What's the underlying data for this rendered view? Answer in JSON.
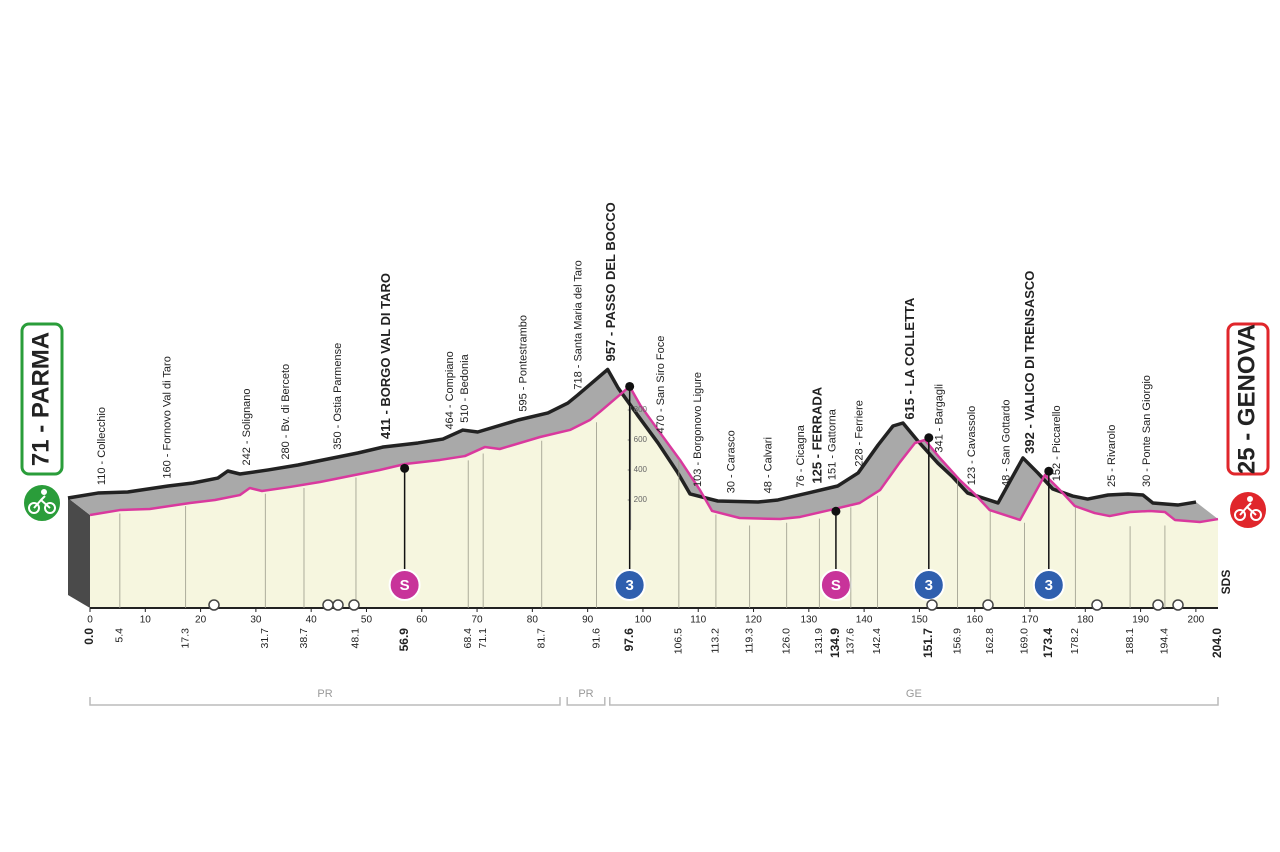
{
  "chart_data": {
    "type": "profile",
    "start": "71 - PARMA",
    "finish": "25 - GENOVA",
    "logo": "SDS",
    "xlim": [
      0,
      204
    ],
    "xticks": [
      0,
      10,
      20,
      30,
      40,
      50,
      60,
      70,
      80,
      90,
      100,
      110,
      120,
      130,
      140,
      150,
      160,
      170,
      180,
      190,
      200
    ],
    "ylim": [
      0,
      1000
    ],
    "yticks": [
      200,
      400,
      600,
      800
    ],
    "front_color": "#d9399e",
    "back_color": "#222222",
    "band_color": "#a9a9a9",
    "fill_color": "#f6f6df",
    "x": [
      0,
      5.4,
      10.8,
      18.1,
      22.6,
      27.1,
      28.9,
      31.1,
      36.2,
      41.6,
      47.0,
      52.4,
      57.0,
      63.3,
      67.8,
      71.4,
      74.1,
      81.4,
      86.8,
      90.4,
      92.2,
      97.6,
      99.5,
      103.0,
      106.7,
      110.3,
      112.5,
      117.5,
      124.8,
      128.4,
      133.8,
      139.2,
      142.9,
      146.5,
      149.2,
      151.0,
      153.7,
      157.3,
      160.0,
      162.7,
      168.2,
      172.7,
      175.4,
      178.1,
      181.7,
      184.4,
      188.1,
      191.7,
      194.4,
      196.2,
      200.7,
      204.0
    ],
    "values": [
      100,
      133,
      140,
      180,
      200,
      233,
      280,
      260,
      287,
      320,
      360,
      400,
      440,
      467,
      493,
      553,
      540,
      620,
      667,
      733,
      787,
      957,
      833,
      653,
      467,
      267,
      127,
      80,
      73,
      87,
      133,
      180,
      267,
      453,
      580,
      600,
      480,
      333,
      240,
      133,
      67,
      367,
      267,
      160,
      113,
      93,
      120,
      127,
      120,
      67,
      53,
      73
    ],
    "waypoints": [
      {
        "km": {
          "value": 0,
          "label": "0.0"
        },
        "bold": true
      },
      {
        "km": 5.4,
        "altitude": 110,
        "name": "110 - Collecchio"
      },
      {
        "km": 17.3,
        "altitude": 160,
        "name": "160 - Fornovo Val di Taro"
      },
      {
        "km": 31.7,
        "altitude": 242,
        "name": "242 - Solignano"
      },
      {
        "km": 38.7,
        "altitude": 280,
        "name": "280 - Bv. di Berceto"
      },
      {
        "km": 48.1,
        "altitude": 350,
        "name": "350 - Ostia Parmense"
      },
      {
        "km": 56.9,
        "altitude": 411,
        "name": "411 - BORGO VAL DI TARO",
        "bold": true,
        "badge": "S",
        "badge_color": "#c8339a"
      },
      {
        "km": 68.4,
        "altitude": 464,
        "name": "464 - Compiano"
      },
      {
        "km": 71.1,
        "altitude": 510,
        "name": "510 - Bedonia"
      },
      {
        "km": 81.7,
        "altitude": 595,
        "name": "595 - Pontestrambo"
      },
      {
        "km": 91.6,
        "altitude": 718,
        "name": "718 - Santa Maria del Taro"
      },
      {
        "km": 97.6,
        "altitude": 957,
        "name": "957 - PASSO DEL BOCCO",
        "bold": true,
        "badge": "3",
        "badge_color": "#2f5fae"
      },
      {
        "km": 106.5,
        "altitude": 470,
        "name": "470 - San Siro Foce"
      },
      {
        "km": 113.2,
        "altitude": 103,
        "name": "103 - Borgonovo Ligure"
      },
      {
        "km": 119.3,
        "altitude": 30,
        "name": "30 - Carasco"
      },
      {
        "km": {
          "value": 126,
          "label": "126.0"
        },
        "altitude": 48,
        "name": "48 - Calvari"
      },
      {
        "km": 131.9,
        "altitude": 76,
        "name": "76 - Cicagna"
      },
      {
        "km": 134.9,
        "altitude": 125,
        "name": "125 - FERRADA",
        "bold": true,
        "badge": "S",
        "badge_color": "#c8339a"
      },
      {
        "km": 137.6,
        "altitude": 151,
        "name": "151 - Gattorna"
      },
      {
        "km": 142.4,
        "altitude": 228,
        "name": "228 - Ferriere"
      },
      {
        "km": 151.7,
        "altitude": 615,
        "name": "615 - LA COLLETTA",
        "bold": true,
        "badge": "3",
        "badge_color": "#2f5fae"
      },
      {
        "km": 156.9,
        "altitude": 341,
        "name": "341 - Bargagli"
      },
      {
        "km": 162.8,
        "altitude": 123,
        "name": "123 - Cavassolo"
      },
      {
        "km": {
          "value": 169,
          "label": "169.0"
        },
        "altitude": 48,
        "name": "48 - San Gottardo"
      },
      {
        "km": 173.4,
        "altitude": 392,
        "name": "392 - VALICO DI TRENSASCO",
        "bold": true,
        "badge": "3",
        "badge_color": "#2f5fae"
      },
      {
        "km": 178.2,
        "altitude": 152,
        "name": "152 - Piccarello"
      },
      {
        "km": 188.1,
        "altitude": 25,
        "name": "25 - Rivarolo"
      },
      {
        "km": 194.4,
        "altitude": 30,
        "name": "30 - Ponte San Giorgio"
      },
      {
        "km": {
          "value": 204,
          "label": "204.0"
        },
        "bold": true
      }
    ],
    "regions": [
      {
        "name": "PR",
        "from": 0,
        "to": 85.0
      },
      {
        "name": "PR",
        "from": 86.3,
        "to": 93.1
      },
      {
        "name": "GE",
        "from": 94.0,
        "to": 204
      }
    ]
  }
}
